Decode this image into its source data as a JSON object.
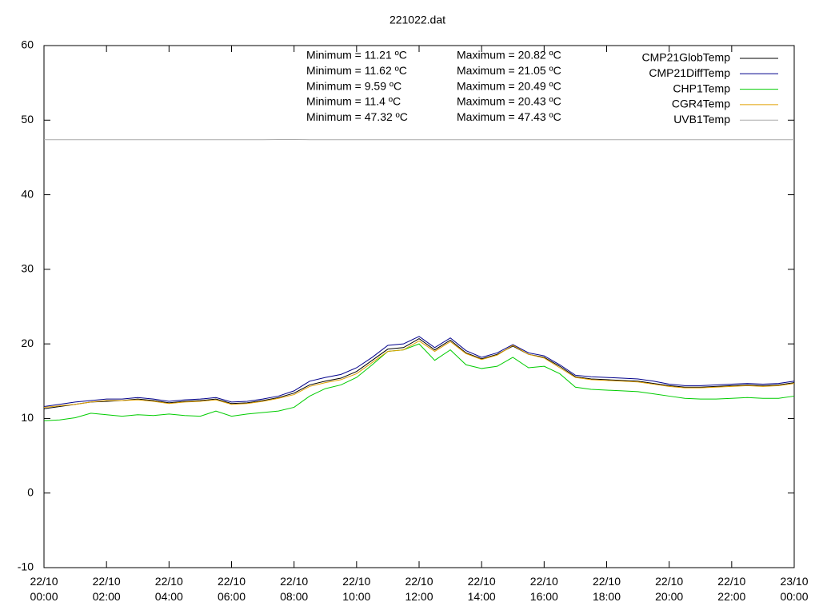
{
  "chart_data": {
    "type": "line",
    "title": "221022.dat",
    "x": [
      0,
      0.5,
      1,
      1.5,
      2,
      2.5,
      3,
      3.5,
      4,
      4.5,
      5,
      5.5,
      6,
      6.5,
      7,
      7.5,
      8,
      8.5,
      9,
      9.5,
      10,
      10.5,
      11,
      11.5,
      12,
      12.5,
      13,
      13.5,
      14,
      14.5,
      15,
      15.5,
      16,
      16.5,
      17,
      17.5,
      18,
      18.5,
      19,
      19.5,
      20,
      20.5,
      21,
      21.5,
      22,
      22.5,
      23,
      23.5,
      24
    ],
    "series": [
      {
        "name": "CMP21GlobTemp",
        "color": "#000000",
        "values": [
          11.3,
          11.6,
          11.9,
          12.2,
          12.3,
          12.4,
          12.6,
          12.4,
          12.1,
          12.3,
          12.4,
          12.6,
          12.0,
          12.1,
          12.4,
          12.8,
          13.4,
          14.5,
          15.0,
          15.4,
          16.3,
          17.8,
          19.3,
          19.5,
          20.7,
          19.2,
          20.5,
          18.8,
          18.0,
          18.6,
          19.7,
          18.6,
          18.2,
          17.0,
          15.6,
          15.3,
          15.2,
          15.1,
          15.0,
          14.7,
          14.4,
          14.2,
          14.2,
          14.3,
          14.4,
          14.5,
          14.4,
          14.5,
          14.8
        ]
      },
      {
        "name": "CMP21DiffTemp",
        "color": "#00008b",
        "values": [
          11.6,
          11.9,
          12.2,
          12.4,
          12.6,
          12.6,
          12.8,
          12.6,
          12.3,
          12.5,
          12.6,
          12.8,
          12.2,
          12.3,
          12.6,
          13.0,
          13.7,
          15.0,
          15.5,
          15.9,
          16.8,
          18.2,
          19.8,
          20.0,
          21.0,
          19.5,
          20.8,
          19.1,
          18.2,
          18.8,
          19.9,
          18.8,
          18.4,
          17.2,
          15.8,
          15.6,
          15.5,
          15.4,
          15.3,
          15.0,
          14.6,
          14.4,
          14.4,
          14.5,
          14.6,
          14.7,
          14.6,
          14.7,
          15.0
        ]
      },
      {
        "name": "CHP1Temp",
        "color": "#00cc00",
        "values": [
          9.7,
          9.8,
          10.1,
          10.7,
          10.5,
          10.3,
          10.5,
          10.4,
          10.6,
          10.4,
          10.3,
          11.0,
          10.3,
          10.6,
          10.8,
          11.0,
          11.5,
          13.0,
          14.0,
          14.5,
          15.5,
          17.2,
          19.0,
          19.2,
          20.0,
          17.8,
          19.2,
          17.2,
          16.7,
          17.0,
          18.2,
          16.8,
          17.0,
          16.0,
          14.2,
          13.9,
          13.8,
          13.7,
          13.6,
          13.3,
          13.0,
          12.7,
          12.6,
          12.6,
          12.7,
          12.8,
          12.7,
          12.7,
          13.0
        ]
      },
      {
        "name": "CGR4Temp",
        "color": "#e0a000",
        "values": [
          11.5,
          11.7,
          11.9,
          12.2,
          12.4,
          12.4,
          12.5,
          12.3,
          12.0,
          12.2,
          12.3,
          12.5,
          11.9,
          12.0,
          12.3,
          12.7,
          13.2,
          14.3,
          14.8,
          15.2,
          16.0,
          17.5,
          19.0,
          19.2,
          20.4,
          19.0,
          20.3,
          18.7,
          17.9,
          18.5,
          19.8,
          18.6,
          18.1,
          16.8,
          15.5,
          15.2,
          15.1,
          15.0,
          14.9,
          14.6,
          14.3,
          14.1,
          14.1,
          14.2,
          14.3,
          14.4,
          14.3,
          14.4,
          14.7
        ]
      },
      {
        "name": "UVB1Temp",
        "color": "#aaaaaa",
        "values": [
          47.38,
          47.38,
          47.38,
          47.38,
          47.38,
          47.38,
          47.38,
          47.38,
          47.38,
          47.38,
          47.38,
          47.38,
          47.38,
          47.38,
          47.38,
          47.4,
          47.4,
          47.38,
          47.38,
          47.38,
          47.38,
          47.38,
          47.38,
          47.38,
          47.38,
          47.38,
          47.38,
          47.38,
          47.38,
          47.38,
          47.38,
          47.38,
          47.38,
          47.38,
          47.38,
          47.38,
          47.38,
          47.38,
          47.38,
          47.38,
          47.38,
          47.38,
          47.38,
          47.38,
          47.38,
          47.38,
          47.38,
          47.38,
          47.38
        ]
      }
    ],
    "annotations": [
      "Minimum = 11.21 ºC",
      "Maximum = 20.82 ºC",
      "Minimum = 11.62 ºC",
      "Maximum = 21.05 ºC",
      "Minimum = 9.59 ºC",
      "Maximum = 20.49 ºC",
      "Minimum = 11.4 ºC",
      "Maximum = 20.43 ºC",
      "Minimum = 47.32 ºC",
      "Maximum = 47.43 ºC"
    ],
    "xlim": [
      0,
      24
    ],
    "xticks": [
      {
        "value": 0,
        "label": "22/10\n00:00"
      },
      {
        "value": 2,
        "label": "22/10\n02:00"
      },
      {
        "value": 4,
        "label": "22/10\n04:00"
      },
      {
        "value": 6,
        "label": "22/10\n06:00"
      },
      {
        "value": 8,
        "label": "22/10\n08:00"
      },
      {
        "value": 10,
        "label": "22/10\n10:00"
      },
      {
        "value": 12,
        "label": "22/10\n12:00"
      },
      {
        "value": 14,
        "label": "22/10\n14:00"
      },
      {
        "value": 16,
        "label": "22/10\n16:00"
      },
      {
        "value": 18,
        "label": "22/10\n18:00"
      },
      {
        "value": 20,
        "label": "22/10\n20:00"
      },
      {
        "value": 22,
        "label": "22/10\n22:00"
      },
      {
        "value": 24,
        "label": "23/10\n00:00"
      }
    ],
    "ylim": [
      -10,
      60
    ],
    "yticks": [
      -10,
      0,
      10,
      20,
      30,
      40,
      50,
      60
    ],
    "legend": "top-right",
    "grid": false
  }
}
